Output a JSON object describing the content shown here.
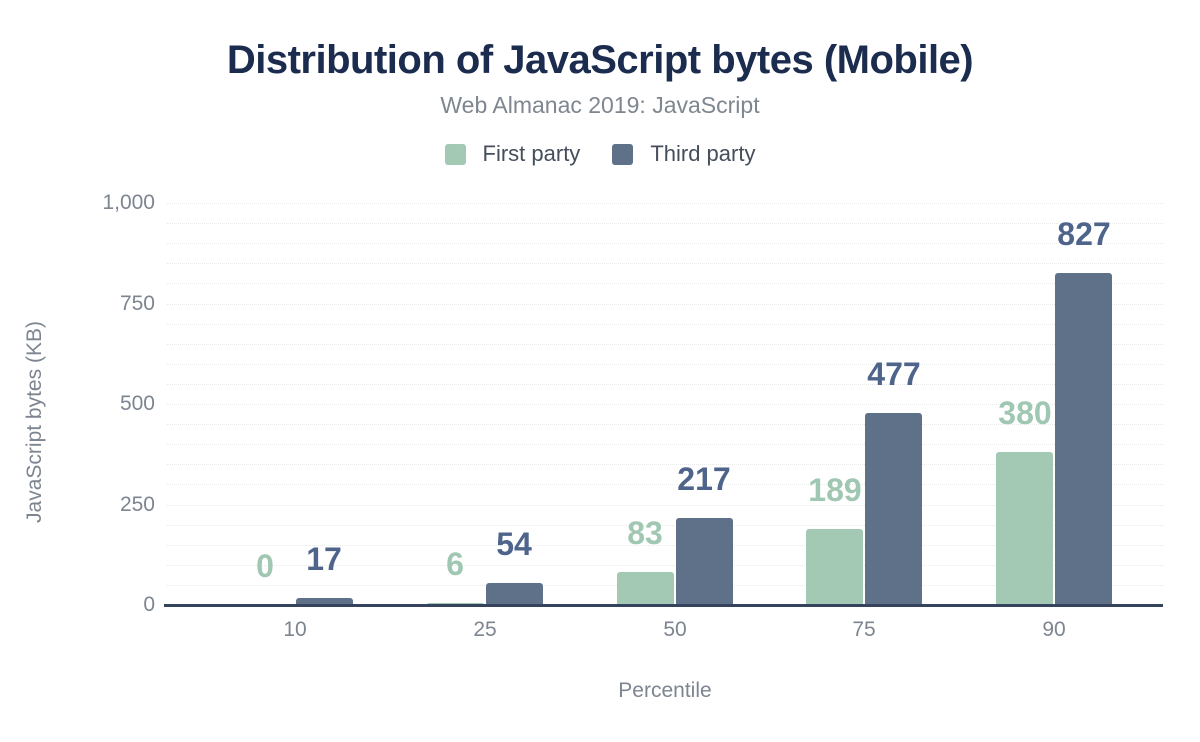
{
  "chart_data": {
    "type": "bar",
    "title": "Distribution of JavaScript bytes (Mobile)",
    "subtitle": "Web Almanac 2019: JavaScript",
    "xlabel": "Percentile",
    "ylabel": "JavaScript bytes (KB)",
    "categories": [
      "10",
      "25",
      "50",
      "75",
      "90"
    ],
    "series": [
      {
        "name": "First party",
        "color": "#a3c9b5",
        "label_color": "#9fc7b2",
        "values": [
          0,
          6,
          83,
          189,
          380
        ]
      },
      {
        "name": "Third party",
        "color": "#5f7189",
        "label_color": "#4e648a",
        "values": [
          17,
          54,
          217,
          477,
          827
        ]
      }
    ],
    "ylim": [
      0,
      1000
    ],
    "yticks": [
      {
        "value": 0,
        "label": "0"
      },
      {
        "value": 250,
        "label": "250"
      },
      {
        "value": 500,
        "label": "500"
      },
      {
        "value": 750,
        "label": "750"
      },
      {
        "value": 1000,
        "label": "1,000"
      }
    ],
    "grid": {
      "on": true,
      "minor_step_kb": 50,
      "line_style": "dotted"
    },
    "legend_position": "top",
    "colors": {
      "background": "#ffffff",
      "title": "#1b2c4e",
      "subtitle": "#7e868f",
      "axis_text": "#7d8590",
      "legend_text": "#454e5c",
      "axis_line": "#36435c",
      "gridline": "#e9e9e9"
    }
  }
}
